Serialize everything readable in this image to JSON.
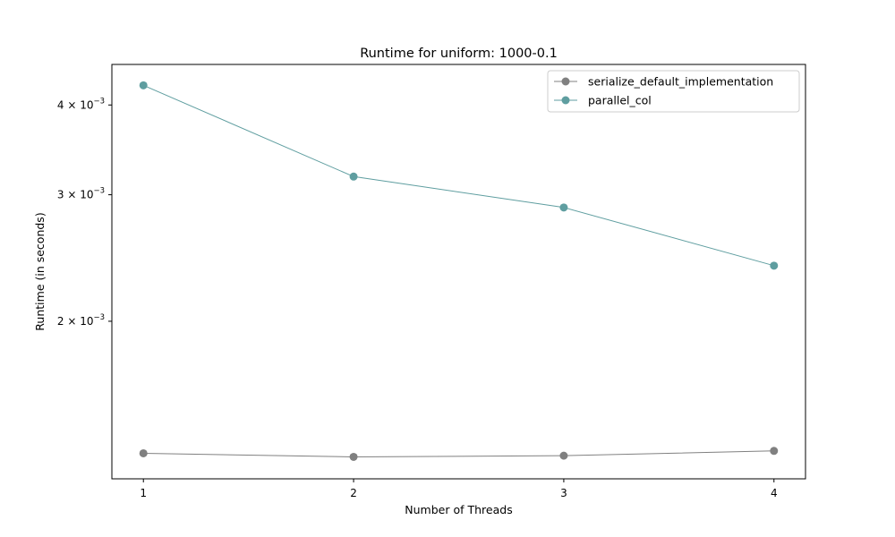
{
  "chart_data": {
    "type": "line",
    "title": "Runtime for uniform: 1000-0.1",
    "xlabel": "Number of Threads",
    "ylabel": "Runtime (in seconds)",
    "x": [
      1,
      2,
      3,
      4
    ],
    "xticks": [
      "1",
      "2",
      "3",
      "4"
    ],
    "yscale": "log",
    "ylim": [
      0.001207,
      0.004555
    ],
    "yticks": [
      {
        "value": 0.004,
        "mantissa": "4",
        "exponent": "−3"
      },
      {
        "value": 0.003,
        "mantissa": "3",
        "exponent": "−3"
      },
      {
        "value": 0.002,
        "mantissa": "2",
        "exponent": "−3"
      }
    ],
    "grid": false,
    "legend": "upper right",
    "series": [
      {
        "name": "serialize_default_implementation",
        "color": "#808080",
        "values": [
          0.00131,
          0.001295,
          0.0013,
          0.00132
        ]
      },
      {
        "name": "parallel_col",
        "color": "#5f9ea0",
        "values": [
          0.00426,
          0.00318,
          0.00288,
          0.00239
        ]
      }
    ]
  }
}
